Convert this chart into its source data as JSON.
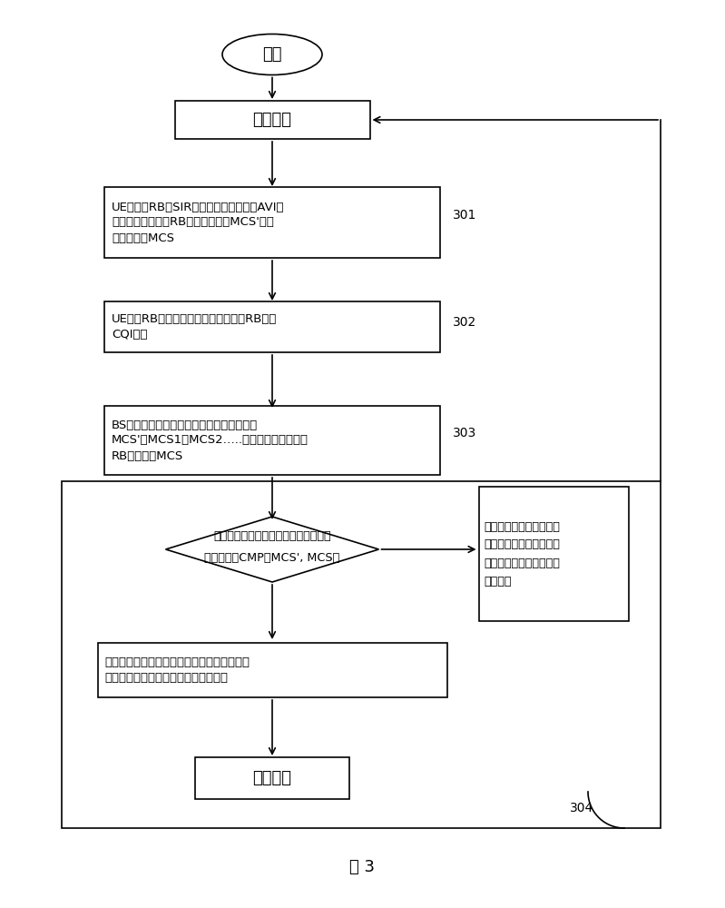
{
  "bg_color": "#ffffff",
  "text_color": "#000000",
  "box_edge_color": "#000000",
  "box_face_color": "#ffffff",
  "fig_label": "图 3",
  "start_label": "开始",
  "node_fenjishi": "分集模式",
  "node_fuyongshi": "复用模式",
  "node301_line1": "UE对不同RB的SIR测量，并由链路仿真AVI表",
  "node301_line2": "获得每个流在不同RB中推荐使用的MCS'和分",
  "node301_line3": "集合并后的MCS",
  "node302_line1": "UE根据RB选择算法，选择需要上报的RB及其",
  "node302_line2": "CQI信息",
  "node303_line1": "BS资源调度，确定复用模式下不同流对应的",
  "node303_line2": "MCS'（MCS1、MCS2…..）和分集模式下所有",
  "node303_line3": "RB对应一个MCS",
  "diamond_line1": "比较两种模式下不同编码调制方式的通",
  "diamond_line2": "过量大小，CMP（MCS', MCS）",
  "node_yes_line1": "如果复用模式下所有流的通过量之和大于分集",
  "node_yes_line2": "模式下单流的通过量，则选择复用模式",
  "node_right_line1": "如果复用模式下所有流的",
  "node_right_line2": "通过量之和小于分集模式",
  "node_right_line3": "下单流的通过量，则保持",
  "node_right_line4": "分集模式",
  "label301": "301",
  "label302": "302",
  "label303": "303",
  "label304": "304"
}
